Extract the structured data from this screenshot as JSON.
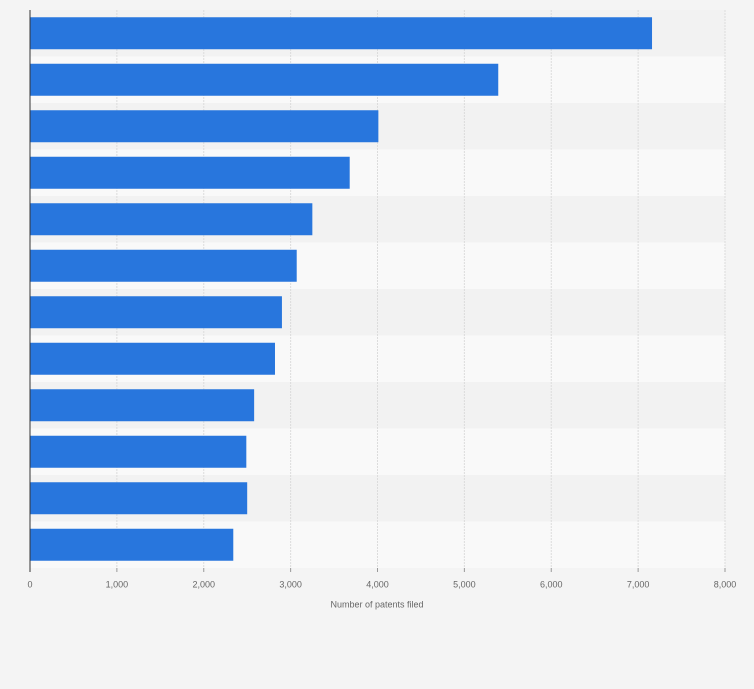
{
  "chart_data": {
    "type": "bar",
    "orientation": "horizontal",
    "x_label": "Number of patents filed",
    "categories": [
      null,
      null,
      null,
      null,
      null,
      null,
      null,
      null,
      null,
      null,
      null,
      null
    ],
    "values": [
      7160,
      5390,
      4010,
      3680,
      3250,
      3070,
      2900,
      2820,
      2580,
      2490,
      2500,
      2340
    ],
    "color": "#2876dd",
    "xlim": [
      0,
      8000
    ],
    "xticks": [
      0,
      {
        "value": 1000,
        "label": "1,000"
      },
      {
        "value": 2000,
        "label": "2,000"
      },
      {
        "value": 3000,
        "label": "3,000"
      },
      {
        "value": 4000,
        "label": "4,000"
      },
      {
        "value": 5000,
        "label": "5,000"
      },
      {
        "value": 6000,
        "label": "6,000"
      },
      {
        "value": 7000,
        "label": "7,000"
      },
      {
        "value": 8000,
        "label": "8,000"
      }
    ],
    "grid": true
  }
}
